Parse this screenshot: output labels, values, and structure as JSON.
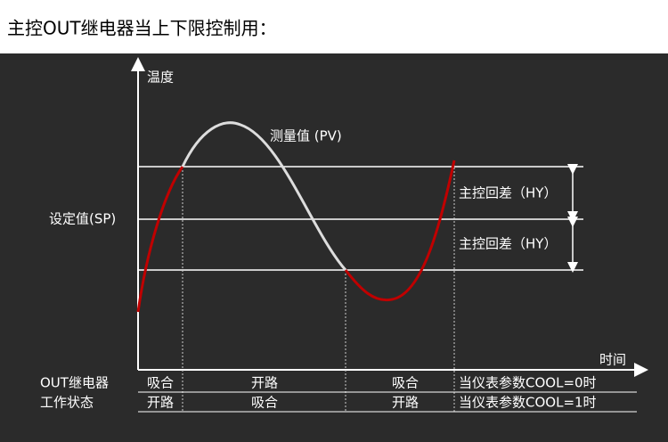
{
  "header": {
    "title": "主控OUT继电器当上下限控制用："
  },
  "diagram": {
    "y_axis_label": "温度",
    "x_axis_label": "时间",
    "pv_label": "测量值 (PV)",
    "sp_label": "设定值(SP)",
    "hysteresis_labels": [
      "主控回差（HY）",
      "主控回差（HY）"
    ]
  },
  "table": {
    "row_header": [
      "OUT继电器",
      "工作状态"
    ],
    "rows": [
      [
        "吸合",
        "开路",
        "吸合",
        "当仪表参数COOL=0时"
      ],
      [
        "开路",
        "吸合",
        "开路",
        "当仪表参数COOL=1时"
      ]
    ]
  }
}
